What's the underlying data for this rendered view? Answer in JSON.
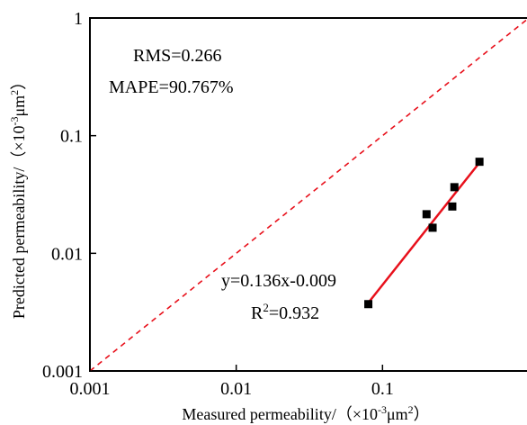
{
  "chart_data": {
    "type": "scatter",
    "x_scale": "log",
    "y_scale": "log",
    "xlim": [
      0.001,
      1
    ],
    "ylim": [
      0.001,
      1
    ],
    "x_ticks": [
      {
        "value": 0.001,
        "label": "0.001"
      },
      {
        "value": 0.01,
        "label": "0.01"
      },
      {
        "value": 0.1,
        "label": "0.1"
      }
    ],
    "y_ticks": [
      {
        "value": 0.001,
        "label": "0.001"
      },
      {
        "value": 0.01,
        "label": "0.01"
      },
      {
        "value": 0.1,
        "label": "0.1"
      },
      {
        "value": 1,
        "label": "1"
      }
    ],
    "xlabel": {
      "text": "Measured permeability/（×10",
      "sup1": "-3",
      "mid": "μm",
      "sup2": "2",
      "end": "）"
    },
    "ylabel": {
      "text": "Predicted permeability/（×10",
      "sup1": "-3",
      "mid": "μm",
      "sup2": "2",
      "end": "）"
    },
    "points": [
      {
        "x": 0.08,
        "y": 0.0037
      },
      {
        "x": 0.2,
        "y": 0.0215
      },
      {
        "x": 0.22,
        "y": 0.0165
      },
      {
        "x": 0.3,
        "y": 0.025
      },
      {
        "x": 0.31,
        "y": 0.0365
      },
      {
        "x": 0.46,
        "y": 0.06
      }
    ],
    "fit_line": {
      "x1": 0.08,
      "y1": 0.0038,
      "x2": 0.47,
      "y2": 0.061,
      "color": "#e8101b"
    },
    "reference_line": {
      "x1": 0.001,
      "y1": 0.001,
      "x2": 1,
      "y2": 1,
      "style": "dashed",
      "color": "#e8101b"
    },
    "stats": {
      "rms": "RMS=0.266",
      "mape": "MAPE=90.767%"
    },
    "equation": "y=0.136x-0.009",
    "r2": {
      "base": "R",
      "sup": "2",
      "rest": "=0.932"
    },
    "grid": false,
    "legend": "none",
    "colors": {
      "marker": "#000000",
      "axis": "#000000",
      "fit": "#e8101b"
    }
  }
}
